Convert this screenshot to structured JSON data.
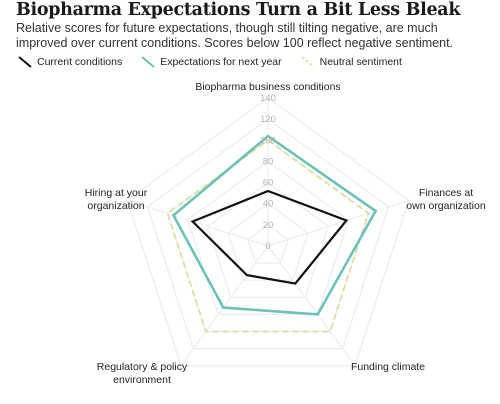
{
  "title": "Biopharma Expectations Turn a Bit Less Bleak",
  "subtitle": "Relative scores for future expectations, though still tilting negative, are much improved over current conditions. Scores below 100 reflect negative sentiment.",
  "colors": {
    "current": "#111111",
    "expectations": "#6ec1b8",
    "neutral": "#d9dd9a",
    "grid": "#ececec"
  },
  "chart_data": {
    "type": "radar",
    "axes": [
      [
        "Biopharma business conditions"
      ],
      [
        "Finances at",
        "own organization"
      ],
      [
        "Funding climate"
      ],
      [
        "Regulatory & policy",
        "environment"
      ],
      [
        "Hiring at your",
        "organization"
      ]
    ],
    "ticks": [
      0,
      20,
      40,
      60,
      80,
      100,
      120,
      140
    ],
    "rlim": [
      0,
      140
    ],
    "series": [
      {
        "name": "Current conditions",
        "key": "current",
        "values": [
          52,
          78,
          44,
          34,
          75
        ]
      },
      {
        "name": "Expectations for next year",
        "key": "expectations",
        "values": [
          104,
          107,
          80,
          72,
          94
        ]
      },
      {
        "name": "Neutral sentiment",
        "key": "neutral",
        "values": [
          100,
          100,
          100,
          100,
          100
        ]
      }
    ],
    "legend_position": "top-left"
  }
}
